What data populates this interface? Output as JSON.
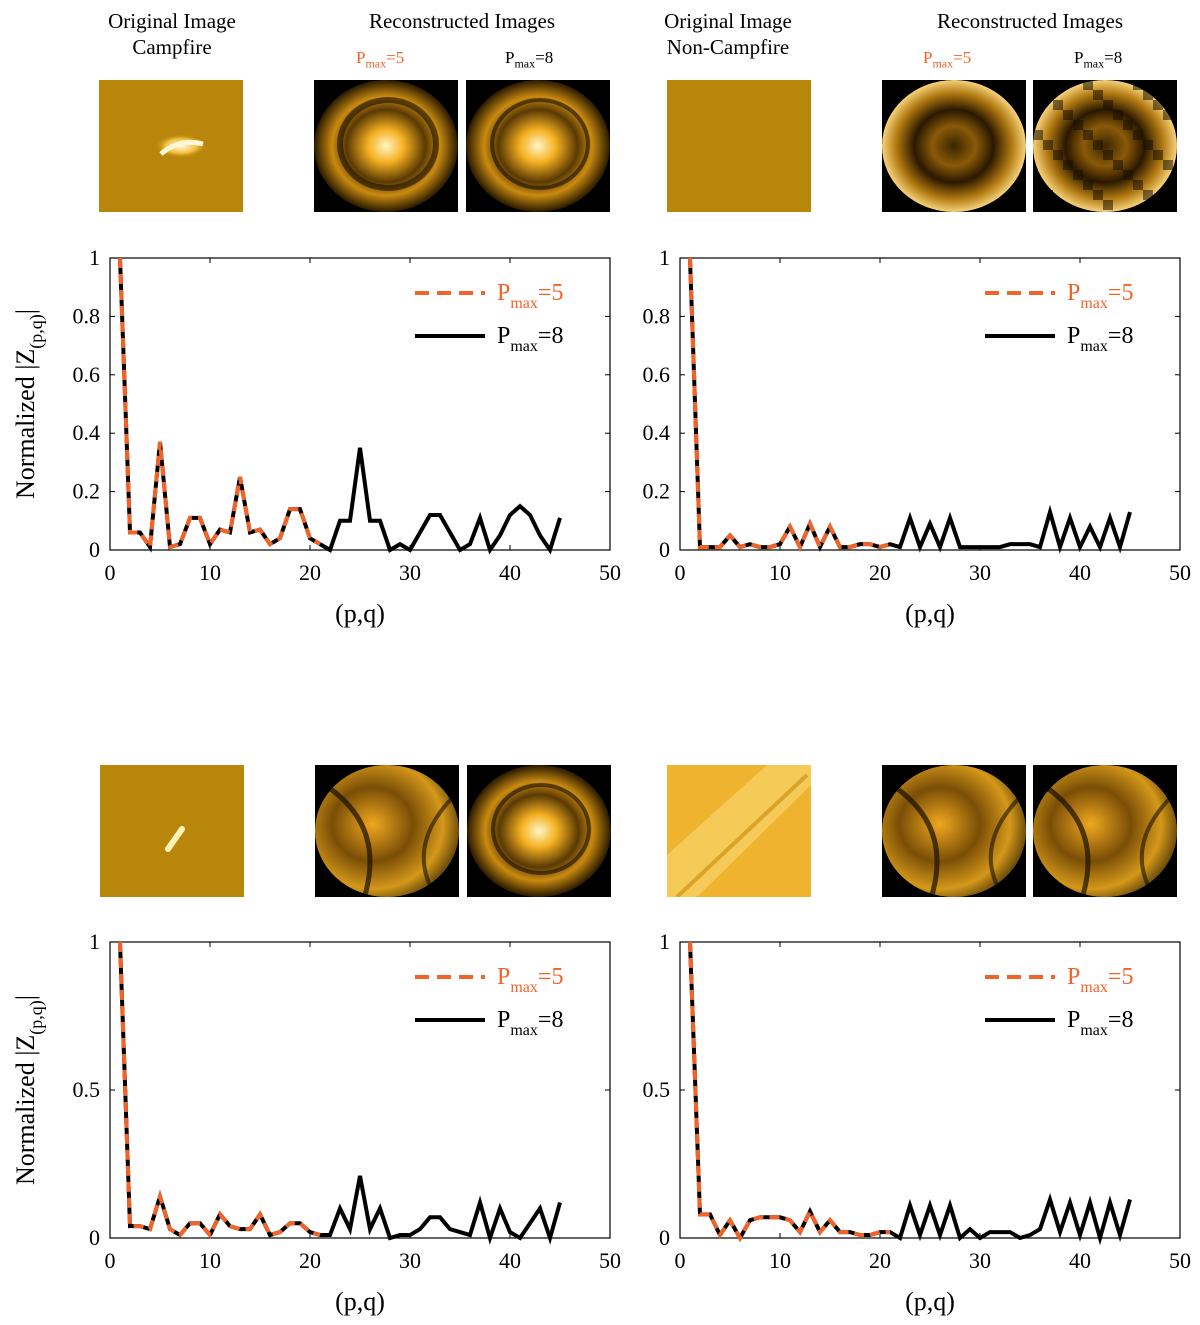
{
  "headers": {
    "orig_campfire": [
      "Original Image",
      "Campfire"
    ],
    "recon_1": "Reconstructed Images",
    "orig_noncampfire": [
      "Original Image",
      "Non-Campfire"
    ],
    "recon_2": "Reconstructed Images",
    "pmax5": {
      "base": "P",
      "sub": "max",
      "tail": "=5"
    },
    "pmax8": {
      "base": "P",
      "sub": "max",
      "tail": "=8"
    }
  },
  "colors": {
    "pmax5": "#f0642a",
    "pmax8": "#000000",
    "fire_dark": "#1a1000",
    "fire_mid": "#e39b10",
    "fire_bright": "#fff6c8"
  },
  "thumbnails": [
    {
      "name": "thumb-original-campfire-1",
      "kind": "original-hotspot-arc"
    },
    {
      "name": "thumb-recon5-campfire-1",
      "kind": "recon-center-glow"
    },
    {
      "name": "thumb-recon8-campfire-1",
      "kind": "recon-center-glow-fine"
    },
    {
      "name": "thumb-original-noncampfire-1",
      "kind": "original-flat"
    },
    {
      "name": "thumb-recon5-noncampfire-1",
      "kind": "recon-rings"
    },
    {
      "name": "thumb-recon8-noncampfire-1",
      "kind": "recon-noisy"
    },
    {
      "name": "thumb-original-campfire-2",
      "kind": "original-hotspot-streak"
    },
    {
      "name": "thumb-recon5-campfire-2",
      "kind": "recon-bands"
    },
    {
      "name": "thumb-recon8-campfire-2",
      "kind": "recon-center-glow-fine"
    },
    {
      "name": "thumb-original-noncampfire-2",
      "kind": "original-bright-diag"
    },
    {
      "name": "thumb-recon5-noncampfire-2",
      "kind": "recon-waves"
    },
    {
      "name": "thumb-recon8-noncampfire-2",
      "kind": "recon-waves-fine"
    }
  ],
  "chart_data": [
    {
      "type": "line",
      "xlabel": "(p,q)",
      "ylabel": "Normalized |Z(p,q)|",
      "xlim": [
        0,
        50
      ],
      "ylim": [
        0,
        1
      ],
      "xticks": [
        0,
        10,
        20,
        30,
        40,
        50
      ],
      "yticks": [
        0,
        0.2,
        0.4,
        0.6,
        0.8,
        1
      ],
      "legend": "top-right",
      "series": [
        {
          "name": "Pmax=5",
          "style": "dashed",
          "x": [
            1,
            2,
            3,
            4,
            5,
            6,
            7,
            8,
            9,
            10,
            11,
            12,
            13,
            14,
            15,
            16,
            17,
            18,
            19,
            20,
            21
          ],
          "y": [
            1,
            0.06,
            0.06,
            0.01,
            0.37,
            0.01,
            0.02,
            0.11,
            0.11,
            0.02,
            0.07,
            0.06,
            0.25,
            0.06,
            0.07,
            0.02,
            0.04,
            0.14,
            0.14,
            0.04,
            0.02
          ]
        },
        {
          "name": "Pmax=8",
          "style": "solid",
          "x": [
            1,
            2,
            3,
            4,
            5,
            6,
            7,
            8,
            9,
            10,
            11,
            12,
            13,
            14,
            15,
            16,
            17,
            18,
            19,
            20,
            21,
            22,
            23,
            24,
            25,
            26,
            27,
            28,
            29,
            30,
            31,
            32,
            33,
            34,
            35,
            36,
            37,
            38,
            39,
            40,
            41,
            42,
            43,
            44,
            45
          ],
          "y": [
            1,
            0.06,
            0.06,
            0.01,
            0.37,
            0.01,
            0.02,
            0.11,
            0.11,
            0.02,
            0.07,
            0.06,
            0.25,
            0.06,
            0.07,
            0.02,
            0.04,
            0.14,
            0.14,
            0.04,
            0.02,
            0,
            0.1,
            0.1,
            0.35,
            0.1,
            0.1,
            0,
            0.02,
            0,
            0.06,
            0.12,
            0.12,
            0.06,
            0,
            0.02,
            0.11,
            0,
            0.05,
            0.12,
            0.15,
            0.12,
            0.05,
            0,
            0.11
          ]
        }
      ]
    },
    {
      "type": "line",
      "xlabel": "(p,q)",
      "ylabel": "",
      "xlim": [
        0,
        50
      ],
      "ylim": [
        0,
        1
      ],
      "xticks": [
        0,
        10,
        20,
        30,
        40,
        50
      ],
      "yticks": [
        0,
        0.2,
        0.4,
        0.6,
        0.8,
        1
      ],
      "legend": "top-right",
      "series": [
        {
          "name": "Pmax=5",
          "style": "dashed",
          "x": [
            1,
            2,
            3,
            4,
            5,
            6,
            7,
            8,
            9,
            10,
            11,
            12,
            13,
            14,
            15,
            16,
            17,
            18,
            19,
            20,
            21
          ],
          "y": [
            1,
            0.01,
            0.01,
            0.01,
            0.05,
            0.01,
            0.02,
            0.01,
            0.01,
            0.02,
            0.08,
            0.01,
            0.09,
            0.01,
            0.08,
            0.01,
            0.01,
            0.02,
            0.02,
            0.01,
            0.02
          ]
        },
        {
          "name": "Pmax=8",
          "style": "solid",
          "x": [
            1,
            2,
            3,
            4,
            5,
            6,
            7,
            8,
            9,
            10,
            11,
            12,
            13,
            14,
            15,
            16,
            17,
            18,
            19,
            20,
            21,
            22,
            23,
            24,
            25,
            26,
            27,
            28,
            29,
            30,
            31,
            32,
            33,
            34,
            35,
            36,
            37,
            38,
            39,
            40,
            41,
            42,
            43,
            44,
            45
          ],
          "y": [
            1,
            0.01,
            0.01,
            0.01,
            0.05,
            0.01,
            0.02,
            0.01,
            0.01,
            0.02,
            0.08,
            0.01,
            0.09,
            0.01,
            0.08,
            0.01,
            0.01,
            0.02,
            0.02,
            0.01,
            0.02,
            0.01,
            0.11,
            0.01,
            0.09,
            0.01,
            0.11,
            0.01,
            0.01,
            0.01,
            0.01,
            0.01,
            0.02,
            0.02,
            0.02,
            0.01,
            0.13,
            0.01,
            0.11,
            0.01,
            0.08,
            0.01,
            0.11,
            0.01,
            0.13
          ]
        }
      ]
    },
    {
      "type": "line",
      "xlabel": "(p,q)",
      "ylabel": "Normalized |Z(p,q)|",
      "xlim": [
        0,
        50
      ],
      "ylim": [
        0,
        1
      ],
      "xticks": [
        0,
        10,
        20,
        30,
        40,
        50
      ],
      "yticks": [
        0,
        0.5,
        1
      ],
      "legend": "top-right",
      "series": [
        {
          "name": "Pmax=5",
          "style": "dashed",
          "x": [
            1,
            2,
            3,
            4,
            5,
            6,
            7,
            8,
            9,
            10,
            11,
            12,
            13,
            14,
            15,
            16,
            17,
            18,
            19,
            20,
            21
          ],
          "y": [
            1,
            0.04,
            0.04,
            0.03,
            0.14,
            0.03,
            0.01,
            0.05,
            0.05,
            0.01,
            0.08,
            0.04,
            0.03,
            0.03,
            0.08,
            0.01,
            0.02,
            0.05,
            0.05,
            0.02,
            0.01
          ]
        },
        {
          "name": "Pmax=8",
          "style": "solid",
          "x": [
            1,
            2,
            3,
            4,
            5,
            6,
            7,
            8,
            9,
            10,
            11,
            12,
            13,
            14,
            15,
            16,
            17,
            18,
            19,
            20,
            21,
            22,
            23,
            24,
            25,
            26,
            27,
            28,
            29,
            30,
            31,
            32,
            33,
            34,
            35,
            36,
            37,
            38,
            39,
            40,
            41,
            42,
            43,
            44,
            45
          ],
          "y": [
            1,
            0.04,
            0.04,
            0.03,
            0.14,
            0.03,
            0.01,
            0.05,
            0.05,
            0.01,
            0.08,
            0.04,
            0.03,
            0.03,
            0.08,
            0.01,
            0.02,
            0.05,
            0.05,
            0.02,
            0.01,
            0.01,
            0.1,
            0.03,
            0.21,
            0.03,
            0.1,
            0,
            0.01,
            0.01,
            0.03,
            0.07,
            0.07,
            0.03,
            0.02,
            0.01,
            0.12,
            0,
            0.1,
            0.02,
            0,
            0.05,
            0.1,
            0,
            0.12
          ]
        }
      ]
    },
    {
      "type": "line",
      "xlabel": "(p,q)",
      "ylabel": "",
      "xlim": [
        0,
        50
      ],
      "ylim": [
        0,
        1
      ],
      "xticks": [
        0,
        10,
        20,
        30,
        40,
        50
      ],
      "yticks": [
        0,
        0.5,
        1
      ],
      "legend": "top-right",
      "series": [
        {
          "name": "Pmax=5",
          "style": "dashed",
          "x": [
            1,
            2,
            3,
            4,
            5,
            6,
            7,
            8,
            9,
            10,
            11,
            12,
            13,
            14,
            15,
            16,
            17,
            18,
            19,
            20,
            21
          ],
          "y": [
            1,
            0.08,
            0.08,
            0.01,
            0.06,
            0,
            0.06,
            0.07,
            0.07,
            0.07,
            0.06,
            0.02,
            0.09,
            0.02,
            0.06,
            0.02,
            0.02,
            0.01,
            0.01,
            0.02,
            0.02
          ]
        },
        {
          "name": "Pmax=8",
          "style": "solid",
          "x": [
            1,
            2,
            3,
            4,
            5,
            6,
            7,
            8,
            9,
            10,
            11,
            12,
            13,
            14,
            15,
            16,
            17,
            18,
            19,
            20,
            21,
            22,
            23,
            24,
            25,
            26,
            27,
            28,
            29,
            30,
            31,
            32,
            33,
            34,
            35,
            36,
            37,
            38,
            39,
            40,
            41,
            42,
            43,
            44,
            45
          ],
          "y": [
            1,
            0.08,
            0.08,
            0.01,
            0.06,
            0,
            0.06,
            0.07,
            0.07,
            0.07,
            0.06,
            0.02,
            0.09,
            0.02,
            0.06,
            0.02,
            0.02,
            0.01,
            0.01,
            0.02,
            0.02,
            0,
            0.11,
            0.01,
            0.11,
            0.01,
            0.11,
            0,
            0.03,
            0,
            0.02,
            0.02,
            0.02,
            0,
            0.01,
            0.03,
            0.13,
            0.02,
            0.12,
            0.01,
            0.12,
            0,
            0.12,
            0.01,
            0.13
          ]
        }
      ]
    }
  ]
}
